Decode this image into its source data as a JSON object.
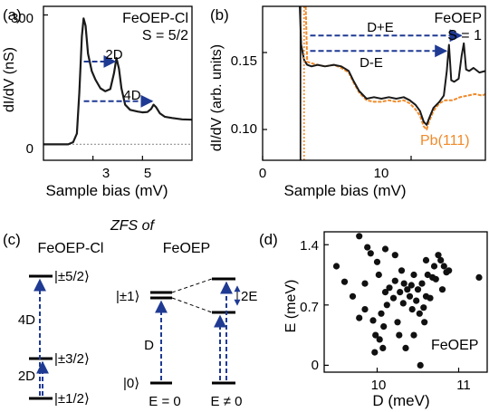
{
  "panels": {
    "a": {
      "tag": "(a)",
      "molecule": "FeOEP-Cl",
      "spin": "S = 5/2",
      "xlabel": "Sample bias (mV)",
      "ylabel": "dI/dV (nS)",
      "arrow_labels": [
        "2D",
        "4D"
      ]
    },
    "b": {
      "tag": "(b)",
      "molecule": "FeOEP",
      "spin": "S = 1",
      "xlabel": "Sample bias (mV)",
      "ylabel": "dI/dV (arb. units)",
      "arrow_labels": [
        "D+E",
        "D-E"
      ],
      "ref_label": "Pb(111)"
    },
    "c": {
      "tag": "(c)",
      "heading": "ZFS of",
      "left_title": "FeOEP-Cl",
      "right_title": "FeOEP",
      "levels_left": [
        "|±5/2⟩",
        "|±3/2⟩",
        "|±1/2⟩"
      ],
      "levels_right": [
        "|±1⟩",
        "|0⟩"
      ],
      "gap_labels": [
        "4D",
        "2D",
        "D",
        "2E"
      ],
      "conditions": [
        "E = 0",
        "E ≠ 0"
      ]
    },
    "d": {
      "tag": "(d)",
      "annotation": "FeOEP",
      "xlabel": "D (meV)",
      "ylabel": "E (meV)"
    }
  },
  "colors": {
    "trace": "#1a1a1a",
    "reference": "#f08a2a",
    "arrow": "#1f3a93",
    "zero_line": "#9e9e9e"
  },
  "chart_data": [
    {
      "panel": "a",
      "type": "line",
      "xlabel": "Sample bias (mV)",
      "ylabel": "dI/dV (nS)",
      "xlim": [
        1.0,
        7.0
      ],
      "ylim": [
        0,
        320
      ],
      "xticks": [
        3,
        5
      ],
      "yticks": [
        0,
        300
      ],
      "series": [
        {
          "x": [
            1.0,
            2.0,
            2.2,
            2.35,
            2.45,
            2.55,
            2.62,
            2.7,
            2.8,
            2.95,
            3.1,
            3.3,
            3.5,
            3.7,
            3.85,
            3.95,
            4.05,
            4.15,
            4.3,
            4.5,
            4.8,
            5.0,
            5.2,
            5.35,
            5.45,
            5.55,
            5.7,
            5.9,
            6.2,
            6.6,
            7.0
          ],
          "y": [
            0,
            0,
            5,
            25,
            120,
            250,
            292,
            275,
            210,
            170,
            150,
            130,
            123,
            128,
            165,
            200,
            175,
            130,
            92,
            80,
            76,
            74,
            75,
            82,
            92,
            86,
            72,
            64,
            61,
            58,
            57
          ]
        },
        {
          "name": "zero",
          "x": [
            1.0,
            7.0
          ],
          "y": [
            0,
            0
          ],
          "style": "dotted"
        }
      ],
      "annotations": [
        {
          "label": "2D",
          "x_from": 2.63,
          "x_to": 4.0,
          "y": 192
        },
        {
          "label": "4D",
          "x_from": 2.63,
          "x_to": 5.5,
          "y": 100
        }
      ]
    },
    {
      "panel": "b",
      "type": "line",
      "xlabel": "Sample bias (mV)",
      "ylabel": "dI/dV (arb. units)",
      "xlim": [
        0,
        15
      ],
      "ylim": [
        0.08,
        0.18
      ],
      "xticks": [
        0,
        10
      ],
      "yticks": [
        0.1,
        0.15
      ],
      "series": [
        {
          "name": "FeOEP",
          "x": [
            2.5,
            2.6,
            2.8,
            3.0,
            3.3,
            3.7,
            4.2,
            4.8,
            5.3,
            5.8,
            6.1,
            6.5,
            7.0,
            7.5,
            8.0,
            8.5,
            9.0,
            9.5,
            9.9,
            10.3,
            10.6,
            10.85,
            11.05,
            11.2,
            11.5,
            11.9,
            12.2,
            12.4,
            12.55,
            12.7,
            12.9,
            13.2,
            13.4,
            13.55,
            13.7,
            13.9,
            14.2,
            14.6,
            15.0
          ],
          "y": [
            0.18,
            0.155,
            0.145,
            0.142,
            0.141,
            0.142,
            0.141,
            0.142,
            0.141,
            0.138,
            0.132,
            0.125,
            0.12,
            0.121,
            0.12,
            0.121,
            0.12,
            0.121,
            0.119,
            0.116,
            0.112,
            0.105,
            0.103,
            0.107,
            0.114,
            0.118,
            0.122,
            0.138,
            0.155,
            0.132,
            0.131,
            0.133,
            0.148,
            0.156,
            0.139,
            0.138,
            0.14,
            0.137,
            0.138
          ]
        },
        {
          "name": "Pb(111)",
          "x": [
            2.9,
            3.0,
            3.3,
            3.7,
            4.2,
            4.8,
            5.3,
            5.8,
            6.1,
            6.5,
            7.0,
            7.5,
            8.0,
            8.5,
            9.0,
            9.5,
            9.9,
            10.3,
            10.6,
            10.85,
            11.05,
            11.2,
            11.5,
            11.9,
            12.3,
            12.8,
            13.3,
            13.8,
            14.3,
            14.8,
            15.0
          ],
          "y": [
            0.18,
            0.144,
            0.143,
            0.142,
            0.141,
            0.142,
            0.14,
            0.137,
            0.131,
            0.124,
            0.119,
            0.118,
            0.118,
            0.119,
            0.118,
            0.119,
            0.117,
            0.113,
            0.109,
            0.102,
            0.1,
            0.105,
            0.112,
            0.117,
            0.119,
            0.119,
            0.121,
            0.122,
            0.123,
            0.122,
            0.123
          ]
        },
        {
          "name": "gap",
          "x": [
            2.55,
            2.55
          ],
          "y": [
            0.08,
            0.18
          ],
          "style": "vertical"
        }
      ],
      "annotations": [
        {
          "label": "D+E",
          "x_from": 3.2,
          "x_to": 13.55,
          "y": 0.161
        },
        {
          "label": "D-E",
          "x_from": 3.2,
          "x_to": 12.55,
          "y": 0.151
        }
      ]
    },
    {
      "panel": "d",
      "type": "scatter",
      "xlabel": "D (meV)",
      "ylabel": "E (meV)",
      "xlim": [
        9.35,
        11.35
      ],
      "ylim": [
        -0.08,
        1.55
      ],
      "xticks": [
        10,
        11
      ],
      "yticks": [
        0,
        0.7,
        1.4
      ],
      "points": [
        [
          9.5,
          1.15
        ],
        [
          9.6,
          0.97
        ],
        [
          9.7,
          0.8
        ],
        [
          9.78,
          1.5
        ],
        [
          9.78,
          0.55
        ],
        [
          9.85,
          0.95
        ],
        [
          9.85,
          0.65
        ],
        [
          9.88,
          1.37
        ],
        [
          9.92,
          1.3
        ],
        [
          9.95,
          0.52
        ],
        [
          9.97,
          0.15
        ],
        [
          9.98,
          0.35
        ],
        [
          10.0,
          1.2
        ],
        [
          10.02,
          1.05
        ],
        [
          10.03,
          0.3
        ],
        [
          10.05,
          0.6
        ],
        [
          10.07,
          0.2
        ],
        [
          10.08,
          0.45
        ],
        [
          10.1,
          1.35
        ],
        [
          10.1,
          0.85
        ],
        [
          10.12,
          0.7
        ],
        [
          10.15,
          0.9
        ],
        [
          10.2,
          0.78
        ],
        [
          10.22,
          1.28
        ],
        [
          10.22,
          0.98
        ],
        [
          10.25,
          0.5
        ],
        [
          10.27,
          0.35
        ],
        [
          10.28,
          0.85
        ],
        [
          10.3,
          1.1
        ],
        [
          10.32,
          0.72
        ],
        [
          10.33,
          0.95
        ],
        [
          10.35,
          0.2
        ],
        [
          10.37,
          0.88
        ],
        [
          10.4,
          0.8
        ],
        [
          10.42,
          0.93
        ],
        [
          10.43,
          0.65
        ],
        [
          10.45,
          0.35
        ],
        [
          10.45,
          1.05
        ],
        [
          10.48,
          0.75
        ],
        [
          10.5,
          0.88
        ],
        [
          10.52,
          0.6
        ],
        [
          10.53,
          0.0
        ],
        [
          10.55,
          0.95
        ],
        [
          10.57,
          0.67
        ],
        [
          10.58,
          0.5
        ],
        [
          10.6,
          0.8
        ],
        [
          10.6,
          1.22
        ],
        [
          10.62,
          1.05
        ],
        [
          10.65,
          0.78
        ],
        [
          10.68,
          1.02
        ],
        [
          10.7,
          1.15
        ],
        [
          10.72,
          1.0
        ],
        [
          10.75,
          1.28
        ],
        [
          10.78,
          1.22
        ],
        [
          10.8,
          0.88
        ],
        [
          10.82,
          1.15
        ],
        [
          10.85,
          1.08
        ],
        [
          10.88,
          1.1
        ],
        [
          11.25,
          1.02
        ]
      ]
    }
  ]
}
